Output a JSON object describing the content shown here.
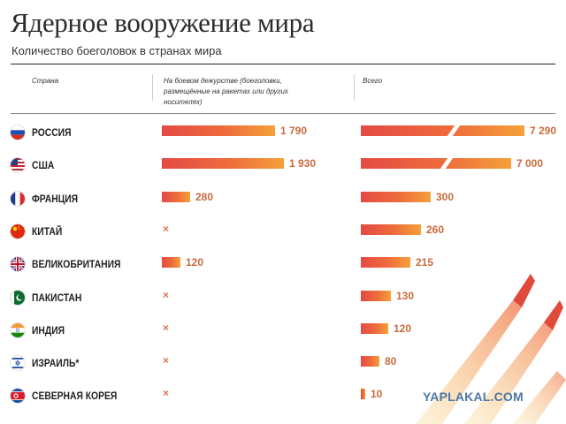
{
  "header": {
    "title": "Ядерное вооружение мира",
    "subtitle": "Количество боеголовок в странах мира"
  },
  "columns": {
    "country": "Страна",
    "deployed": "На боевом дежурстве (боеголовки, размещённые на ракетах или других носителях)",
    "total": "Всего"
  },
  "watermark": "YAPLAKAL.COM",
  "colors": {
    "bar_start": "#e44a44",
    "bar_end": "#f5a03a",
    "value_text": "#c96a3d"
  },
  "chart_data": {
    "type": "bar",
    "title": "Ядерное вооружение мира",
    "subtitle": "Количество боеголовок в странах мира",
    "categories": [
      "РОССИЯ",
      "США",
      "ФРАНЦИЯ",
      "КИТАЙ",
      "ВЕЛИКОБРИТАНИЯ",
      "ПАКИСТАН",
      "ИНДИЯ",
      "ИЗРАИЛЬ*",
      "СЕВЕРНАЯ КОРЕЯ"
    ],
    "flags": [
      "russia-flag-icon",
      "usa-flag-icon",
      "france-flag-icon",
      "china-flag-icon",
      "uk-flag-icon",
      "pakistan-flag-icon",
      "india-flag-icon",
      "israel-flag-icon",
      "north-korea-flag-icon"
    ],
    "series": [
      {
        "name": "На боевом дежурстве (боеголовки, размещённые на ракетах или других носителях)",
        "values": [
          1790,
          1930,
          280,
          null,
          120,
          null,
          null,
          null,
          null
        ],
        "labels": [
          "1 790",
          "1 930",
          "280",
          "",
          "120",
          "",
          "",
          "",
          ""
        ]
      },
      {
        "name": "Всего",
        "values": [
          7290,
          7000,
          300,
          260,
          215,
          130,
          120,
          80,
          10
        ],
        "labels": [
          "7 290",
          "7 000",
          "300",
          "260",
          "215",
          "130",
          "120",
          "80",
          "10"
        ]
      }
    ],
    "missing_marker": "×",
    "broken_axis": true
  }
}
